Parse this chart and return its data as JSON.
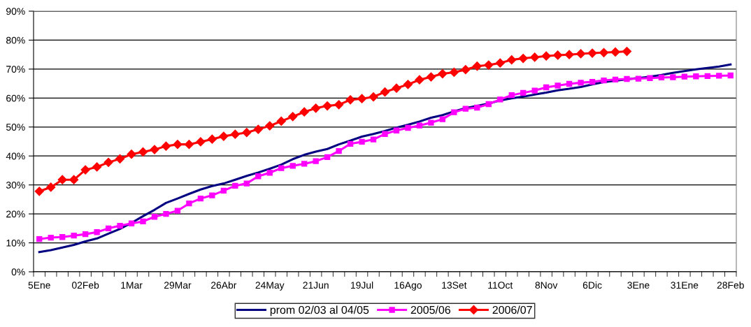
{
  "chart_data": {
    "type": "line",
    "categories": [
      "5Ene",
      null,
      null,
      null,
      "02Feb",
      null,
      null,
      null,
      "1Mar",
      null,
      null,
      null,
      "29Mar",
      null,
      null,
      null,
      "26Abr",
      null,
      null,
      null,
      "24May",
      null,
      null,
      null,
      "21Jun",
      null,
      null,
      null,
      "19Jul",
      null,
      null,
      null,
      "16Ago",
      null,
      null,
      null,
      "13Set",
      null,
      null,
      null,
      "11Oct",
      null,
      null,
      null,
      "8Nov",
      null,
      null,
      null,
      "6Dic",
      null,
      null,
      null,
      "3Ene",
      null,
      null,
      null,
      "31Ene",
      null,
      null,
      null,
      "28Feb"
    ],
    "series": [
      {
        "name": "prom 02/03 al 04/05",
        "color": "#000080",
        "marker": "none",
        "values": [
          6.8,
          7.5,
          8.4,
          9.3,
          10.5,
          11.5,
          13.2,
          14.8,
          16.9,
          19.2,
          21.4,
          23.8,
          25.3,
          26.9,
          28.4,
          29.6,
          30.5,
          31.8,
          33.1,
          34.3,
          35.6,
          37.0,
          38.9,
          40.4,
          41.5,
          42.4,
          44.0,
          45.3,
          46.7,
          47.6,
          48.6,
          49.8,
          50.8,
          51.9,
          53.2,
          54.1,
          55.4,
          56.5,
          57.3,
          58.1,
          59.2,
          59.9,
          60.5,
          61.2,
          61.9,
          62.7,
          63.2,
          63.8,
          64.7,
          65.5,
          66.0,
          66.5,
          66.9,
          67.4,
          68.0,
          68.7,
          69.3,
          69.9,
          70.4,
          70.9,
          71.6
        ]
      },
      {
        "name": "2005/06",
        "color": "#ff00ff",
        "marker": "square",
        "values": [
          11.3,
          11.8,
          12.0,
          12.5,
          13.0,
          13.7,
          15.0,
          15.9,
          16.7,
          17.4,
          19.0,
          20.0,
          21.1,
          23.6,
          25.3,
          26.4,
          28.0,
          29.7,
          30.5,
          33.0,
          34.2,
          35.8,
          36.6,
          37.3,
          38.2,
          39.6,
          41.7,
          44.2,
          44.9,
          45.7,
          47.6,
          48.8,
          49.7,
          50.5,
          51.5,
          52.7,
          55.1,
          56.3,
          56.7,
          57.9,
          59.5,
          61.0,
          61.8,
          62.6,
          63.7,
          64.3,
          64.9,
          65.3,
          65.6,
          66.1,
          66.4,
          66.6,
          66.7,
          66.9,
          67.1,
          67.2,
          67.4,
          67.5,
          67.6,
          67.7,
          67.8
        ]
      },
      {
        "name": "2006/07",
        "color": "#ff0000",
        "marker": "diamond",
        "values": [
          27.8,
          29.2,
          31.8,
          31.8,
          35.2,
          36.2,
          37.8,
          39.0,
          40.6,
          41.4,
          42.2,
          43.4,
          44.0,
          44.0,
          44.9,
          45.8,
          46.8,
          47.5,
          48.1,
          49.2,
          50.4,
          52.0,
          53.6,
          55.2,
          56.5,
          57.3,
          57.7,
          59.4,
          59.8,
          60.4,
          62.1,
          63.4,
          64.7,
          66.3,
          67.3,
          68.4,
          68.9,
          69.8,
          71.0,
          71.4,
          72.1,
          73.2,
          73.7,
          74.1,
          74.5,
          74.8,
          75.0,
          75.3,
          75.5,
          75.7,
          75.9,
          76.1,
          null,
          null,
          null,
          null,
          null,
          null,
          null,
          null,
          null
        ]
      }
    ],
    "ylim": [
      0,
      90
    ],
    "yticks": [
      {
        "value": 0,
        "label": "0%"
      },
      {
        "value": 10,
        "label": "10%"
      },
      {
        "value": 20,
        "label": "20%"
      },
      {
        "value": 30,
        "label": "30%"
      },
      {
        "value": 40,
        "label": "40%"
      },
      {
        "value": 50,
        "label": "50%"
      },
      {
        "value": 60,
        "label": "60%"
      },
      {
        "value": 70,
        "label": "70%"
      },
      {
        "value": 80,
        "label": "80%"
      },
      {
        "value": 90,
        "label": "90%"
      }
    ],
    "grid": "y",
    "legend": "bottom",
    "line_style": "solid"
  }
}
